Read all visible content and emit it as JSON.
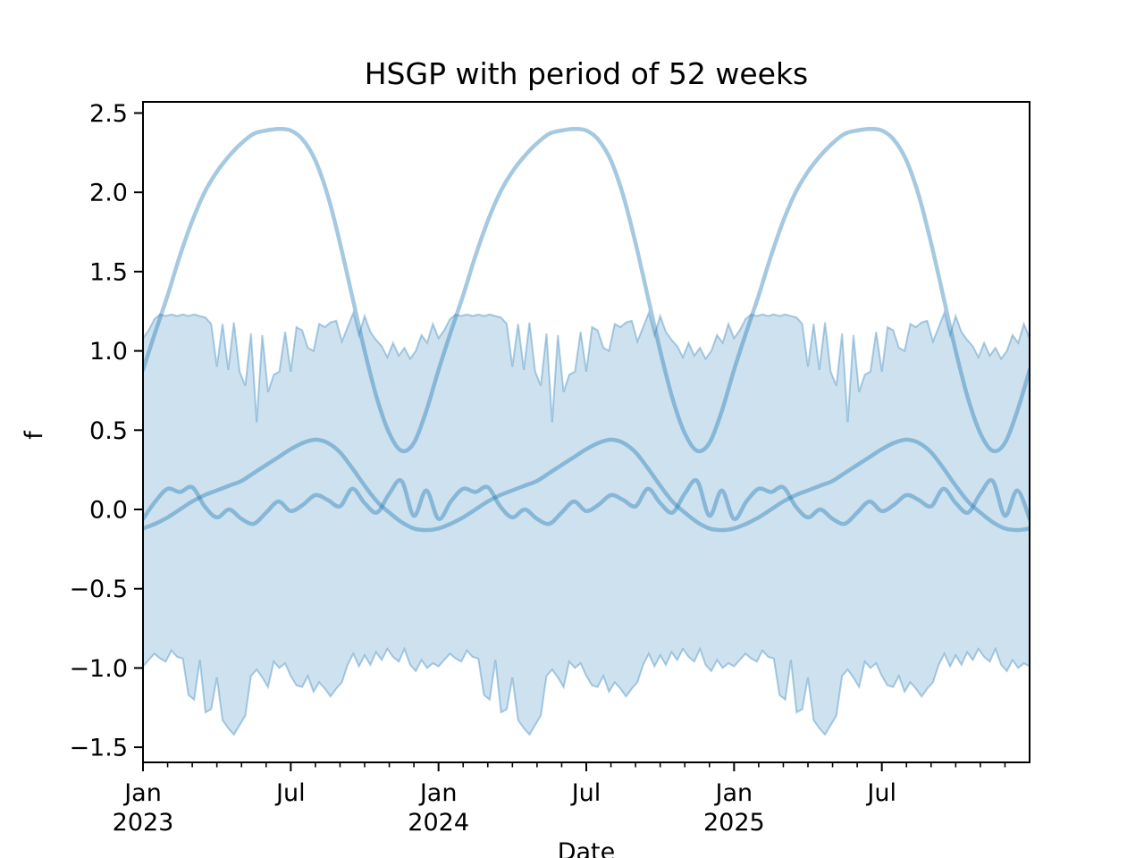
{
  "figure": {
    "title": "HSGP with period of 52 weeks",
    "xlabel": "Date",
    "ylabel": "f"
  },
  "chart_data": {
    "type": "line",
    "title": "HSGP with period of 52 weeks",
    "xlabel": "Date",
    "ylabel": "f",
    "grid": false,
    "legend": "none",
    "x_axis": {
      "unit": "months since 2023-01-01",
      "range": [
        0,
        36
      ],
      "major_ticks": [
        {
          "t": 0,
          "line1": "Jan",
          "line2": "2023"
        },
        {
          "t": 6,
          "line1": "Jul",
          "line2": ""
        },
        {
          "t": 12,
          "line1": "Jan",
          "line2": "2024"
        },
        {
          "t": 18,
          "line1": "Jul",
          "line2": ""
        },
        {
          "t": 24,
          "line1": "Jan",
          "line2": "2025"
        },
        {
          "t": 30,
          "line1": "Jul",
          "line2": ""
        }
      ],
      "minor_ticks": "every month"
    },
    "y_axis": {
      "range": [
        -1.595,
        2.57
      ],
      "ticks": [
        {
          "v": -1.5,
          "label": "−1.5"
        },
        {
          "v": -1.0,
          "label": "−1.0"
        },
        {
          "v": -0.5,
          "label": "−0.5"
        },
        {
          "v": 0.0,
          "label": "0.0"
        },
        {
          "v": 0.5,
          "label": "0.5"
        },
        {
          "v": 1.0,
          "label": "1.0"
        },
        {
          "v": 1.5,
          "label": "1.5"
        },
        {
          "v": 2.0,
          "label": "2.0"
        },
        {
          "v": 2.5,
          "label": "2.5"
        }
      ]
    },
    "band": {
      "name": "hdi-band",
      "period_weeks": 52,
      "weeks_total": 156,
      "upper_year_pattern": [
        1.08,
        1.13,
        1.2,
        1.23,
        1.22,
        1.23,
        1.22,
        1.23,
        1.22,
        1.23,
        1.22,
        1.21,
        1.17,
        0.9,
        1.17,
        0.88,
        1.18,
        0.87,
        0.78,
        1.11,
        0.55,
        1.1,
        0.74,
        0.85,
        0.87,
        1.12,
        0.87,
        1.15,
        1.13,
        1.02,
        1.0,
        1.17,
        1.15,
        1.18,
        1.19,
        1.06,
        1.15,
        1.24,
        1.1,
        1.22,
        1.12,
        1.07,
        1.03,
        0.96,
        1.05,
        0.97,
        1.02,
        0.95,
        1.0,
        1.1,
        1.05,
        1.17
      ],
      "lower_year_pattern": [
        -0.99,
        -0.95,
        -0.91,
        -0.94,
        -0.96,
        -0.89,
        -0.93,
        -0.94,
        -1.17,
        -1.2,
        -0.95,
        -1.28,
        -1.26,
        -1.06,
        -1.33,
        -1.38,
        -1.42,
        -1.36,
        -1.3,
        -1.05,
        -1.01,
        -1.06,
        -1.12,
        -0.96,
        -1.0,
        -0.97,
        -1.05,
        -1.11,
        -1.12,
        -1.05,
        -1.15,
        -1.09,
        -1.13,
        -1.18,
        -1.13,
        -1.09,
        -0.98,
        -0.91,
        -0.99,
        -0.92,
        -0.98,
        -0.9,
        -0.95,
        -0.88,
        -0.93,
        -0.96,
        -0.88,
        -0.98,
        -1.02,
        -0.95,
        -1.0,
        -0.97
      ]
    },
    "series": [
      {
        "name": "sample-curve-large",
        "period_months": 12,
        "t_step_months": 0.5,
        "cycle_values": [
          0.88,
          1.12,
          1.35,
          1.6,
          1.82,
          2.0,
          2.13,
          2.23,
          2.31,
          2.37,
          2.39,
          2.4,
          2.39,
          2.33,
          2.2,
          1.98,
          1.68,
          1.34,
          1.0,
          0.7,
          0.48,
          0.37,
          0.42,
          0.62
        ]
      },
      {
        "name": "sample-curve-medium",
        "period_months": 12,
        "t_step_months": 0.5,
        "cycle_values": [
          -0.12,
          -0.09,
          -0.05,
          0.0,
          0.05,
          0.09,
          0.12,
          0.15,
          0.18,
          0.23,
          0.28,
          0.33,
          0.38,
          0.42,
          0.44,
          0.42,
          0.36,
          0.26,
          0.15,
          0.05,
          -0.02,
          -0.08,
          -0.12,
          -0.13
        ]
      },
      {
        "name": "sample-curve-wiggly",
        "period_months": 12,
        "t_step_months": 0.5,
        "cycle_values": [
          -0.06,
          0.05,
          0.13,
          0.11,
          0.14,
          0.02,
          -0.05,
          0.0,
          -0.06,
          -0.09,
          -0.02,
          0.05,
          -0.01,
          0.03,
          0.09,
          0.06,
          0.02,
          0.13,
          0.04,
          -0.02,
          0.1,
          0.18,
          -0.04,
          0.12
        ]
      }
    ],
    "colors": {
      "line": "rgba(31,119,180,0.40)",
      "band_fill": "rgba(31,119,180,0.22)",
      "band_edge": "rgba(31,119,180,0.35)",
      "axis": "#000000",
      "background": "#ffffff"
    }
  }
}
